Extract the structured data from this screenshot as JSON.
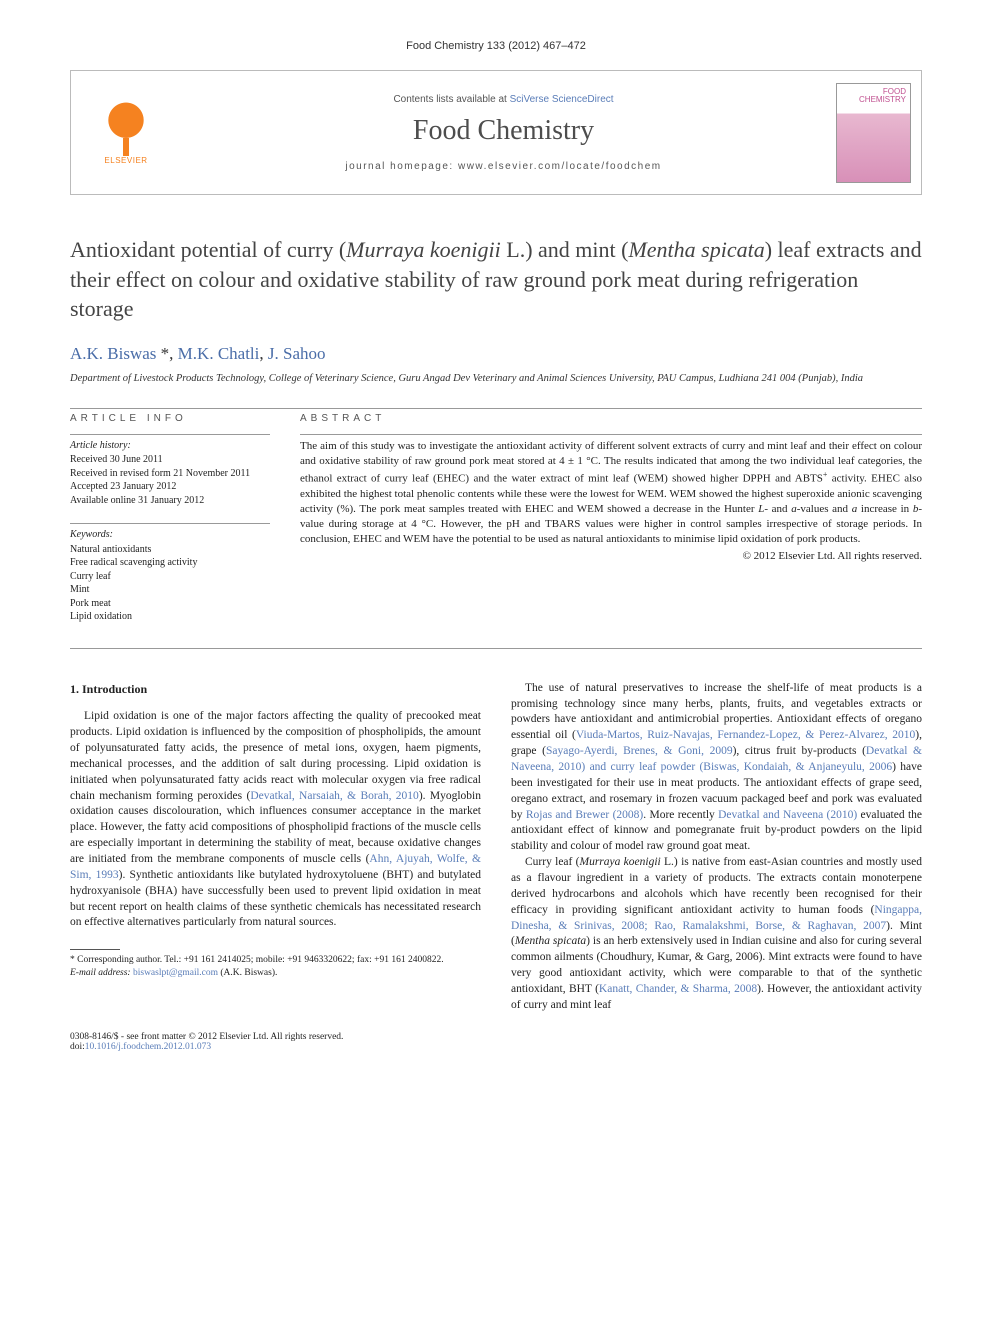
{
  "running_head": "Food Chemistry 133 (2012) 467–472",
  "journal_box": {
    "contents_prefix": "Contents lists available at ",
    "contents_link": "SciVerse ScienceDirect",
    "journal_name": "Food Chemistry",
    "homepage": "journal homepage: www.elsevier.com/locate/foodchem",
    "publisher_name": "ELSEVIER",
    "cover_label_1": "FOOD",
    "cover_label_2": "CHEMISTRY"
  },
  "title_html": "Antioxidant potential of curry (<em>Murraya koenigii</em> L.) and mint (<em>Mentha spicata</em>) leaf extracts and their effect on colour and oxidative stability of raw ground pork meat during refrigeration storage",
  "authors_html": "<a>A.K. Biswas</a> *, <a>M.K. Chatli</a>, <a>J. Sahoo</a>",
  "affiliation": "Department of Livestock Products Technology, College of Veterinary Science, Guru Angad Dev Veterinary and Animal Sciences University, PAU Campus, Ludhiana 241 004 (Punjab), India",
  "article_info": {
    "head": "ARTICLE INFO",
    "history_head": "Article history:",
    "history": [
      "Received 30 June 2011",
      "Received in revised form 21 November 2011",
      "Accepted 23 January 2012",
      "Available online 31 January 2012"
    ],
    "keywords_head": "Keywords:",
    "keywords": [
      "Natural antioxidants",
      "Free radical scavenging activity",
      "Curry leaf",
      "Mint",
      "Pork meat",
      "Lipid oxidation"
    ]
  },
  "abstract": {
    "head": "ABSTRACT",
    "text_html": "The aim of this study was to investigate the antioxidant activity of different solvent extracts of curry and mint leaf and their effect on colour and oxidative stability of raw ground pork meat stored at 4 ± 1 °C. The results indicated that among the two individual leaf categories, the ethanol extract of curry leaf (EHEC) and the water extract of mint leaf (WEM) showed higher DPPH and ABTS<sup>+</sup> activity. EHEC also exhibited the highest total phenolic contents while these were the lowest for WEM. WEM showed the highest superoxide anionic scavenging activity (%). The pork meat samples treated with EHEC and WEM showed a decrease in the Hunter <em>L</em>- and <em>a</em>-values and <em>a</em> increase in <em>b</em>-value during storage at 4 °C. However, the pH and TBARS values were higher in control samples irrespective of storage periods. In conclusion, EHEC and WEM have the potential to be used as natural antioxidants to minimise lipid oxidation of pork products.",
    "copyright": "© 2012 Elsevier Ltd. All rights reserved."
  },
  "body": {
    "intro_head": "1. Introduction",
    "left_p1_html": "Lipid oxidation is one of the major factors affecting the quality of precooked meat products. Lipid oxidation is influenced by the composition of phospholipids, the amount of polyunsaturated fatty acids, the presence of metal ions, oxygen, haem pigments, mechanical processes, and the addition of salt during processing. Lipid oxidation is initiated when polyunsaturated fatty acids react with molecular oxygen via free radical chain mechanism forming peroxides (<span class=\"citation\">Devatkal, Narsaiah, &amp; Borah, 2010</span>). Myoglobin oxidation causes discolouration, which influences consumer acceptance in the market place. However, the fatty acid compositions of phospholipid fractions of the muscle cells are especially important in determining the stability of meat, because oxidative changes are initiated from the membrane components of muscle cells (<span class=\"citation\">Ahn, Ajuyah, Wolfe, &amp; Sim, 1993</span>). Synthetic antioxidants like butylated hydroxytoluene (BHT) and butylated hydroxyanisole (BHA) have successfully been used to prevent lipid oxidation in meat but recent report on health claims of these synthetic chemicals has necessitated research on effective alternatives particularly from natural sources.",
    "right_p1_html": "The use of natural preservatives to increase the shelf-life of meat products is a promising technology since many herbs, plants, fruits, and vegetables extracts or powders have antioxidant and antimicrobial properties. Antioxidant effects of oregano essential oil (<span class=\"citation\">Viuda-Martos, Ruiz-Navajas, Fernandez-Lopez, &amp; Perez-Alvarez, 2010</span>), grape (<span class=\"citation\">Sayago-Ayerdi, Brenes, &amp; Goni, 2009</span>), citrus fruit by-products (<span class=\"citation\">Devatkal &amp; Naveena, 2010) and curry leaf powder (Biswas, Kondaiah, &amp; Anjaneyulu, 2006</span>) have been investigated for their use in meat products. The antioxidant effects of grape seed, oregano extract, and rosemary in frozen vacuum packaged beef and pork was evaluated by <span class=\"citation\">Rojas and Brewer (2008)</span>. More recently <span class=\"citation\">Devatkal and Naveena (2010)</span> evaluated the antioxidant effect of kinnow and pomegranate fruit by-product powders on the lipid stability and colour of model raw ground goat meat.",
    "right_p2_html": "Curry leaf (<em>Murraya koenigii</em> L.) is native from east-Asian countries and mostly used as a flavour ingredient in a variety of products. The extracts contain monoterpene derived hydrocarbons and alcohols which have recently been recognised for their efficacy in providing significant antioxidant activity to human foods (<span class=\"citation\">Ningappa, Dinesha, &amp; Srinivas, 2008; Rao, Ramalakshmi, Borse, &amp; Raghavan, 2007</span>). Mint (<em>Mentha spicata</em>) is an herb extensively used in Indian cuisine and also for curing several common ailments (Choudhury, Kumar, &amp; Garg, 2006). Mint extracts were found to have very good antioxidant activity, which were comparable to that of the synthetic antioxidant, BHT (<span class=\"citation\">Kanatt, Chander, &amp; Sharma, 2008</span>). However, the antioxidant activity of curry and mint leaf"
  },
  "footnotes": {
    "corr": "* Corresponding author. Tel.: +91 161 2414025; mobile: +91 9463320622; fax: +91 161 2400822.",
    "email_label": "E-mail address: ",
    "email": "biswaslpt@gmail.com",
    "email_suffix": " (A.K. Biswas)."
  },
  "footer": {
    "left_line1": "0308-8146/$ - see front matter © 2012 Elsevier Ltd. All rights reserved.",
    "left_line2_prefix": "doi:",
    "doi": "10.1016/j.foodchem.2012.01.073"
  },
  "colors": {
    "link": "#5a7db8",
    "elsevier": "#f58220",
    "cover_accent": "#c05090",
    "text": "#222222",
    "muted": "#555555",
    "border": "#bbbbbb"
  }
}
